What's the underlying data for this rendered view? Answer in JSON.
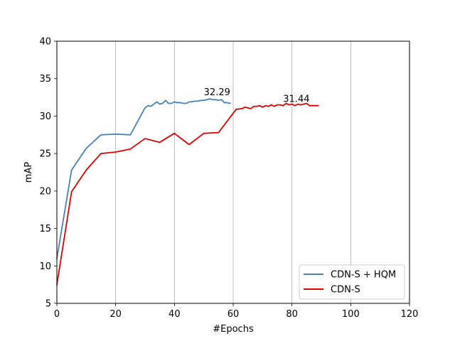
{
  "chart_data": {
    "type": "line",
    "xlabel": "#Epochs",
    "ylabel": "mAP",
    "xlim": [
      0,
      120
    ],
    "ylim": [
      5,
      40
    ],
    "xticks": [
      0,
      20,
      40,
      60,
      80,
      100,
      120
    ],
    "yticks": [
      5,
      10,
      15,
      20,
      25,
      30,
      35,
      40
    ],
    "grid": "vertical",
    "legend_position": "lower-right",
    "series": [
      {
        "name": "CDN-S + HQM",
        "color": "#4682b4",
        "x": [
          0,
          5,
          10,
          15,
          20,
          25,
          30,
          31,
          32,
          33,
          34,
          35,
          36,
          37,
          38,
          39,
          40,
          41,
          42,
          43,
          44,
          45,
          46,
          47,
          48,
          49,
          50,
          51,
          52,
          53,
          54,
          55,
          56,
          57,
          58,
          59
        ],
        "y": [
          11.0,
          22.8,
          25.7,
          27.5,
          27.6,
          27.5,
          31.1,
          31.4,
          31.3,
          31.6,
          31.9,
          31.6,
          31.7,
          32.1,
          31.7,
          31.7,
          31.9,
          31.8,
          31.8,
          31.7,
          31.7,
          31.9,
          31.9,
          32.0,
          32.0,
          32.1,
          32.1,
          32.2,
          32.3,
          32.2,
          32.2,
          32.1,
          32.2,
          31.8,
          31.8,
          31.7
        ]
      },
      {
        "name": "CDN-S",
        "color": "#e00000",
        "x": [
          0,
          5,
          10,
          15,
          20,
          25,
          30,
          35,
          40,
          45,
          50,
          55,
          61,
          63,
          64,
          65,
          66,
          67,
          68,
          69,
          70,
          71,
          72,
          73,
          74,
          75,
          76,
          77,
          78,
          79,
          80,
          81,
          82,
          83,
          84,
          85,
          86,
          87,
          88,
          89
        ],
        "y": [
          7.5,
          19.9,
          22.8,
          25.0,
          25.2,
          25.6,
          27.0,
          26.5,
          27.7,
          26.2,
          27.7,
          27.8,
          30.9,
          31.0,
          31.2,
          31.1,
          31.0,
          31.3,
          31.3,
          31.4,
          31.2,
          31.4,
          31.3,
          31.5,
          31.3,
          31.5,
          31.5,
          31.4,
          31.7,
          31.5,
          31.6,
          31.4,
          31.6,
          31.5,
          31.6,
          31.7,
          31.4,
          31.4,
          31.4,
          31.4
        ]
      }
    ],
    "annotations": [
      {
        "text": "32.29",
        "x": 50,
        "y": 32.8
      },
      {
        "text": "31.44",
        "x": 77,
        "y": 31.9
      }
    ]
  }
}
